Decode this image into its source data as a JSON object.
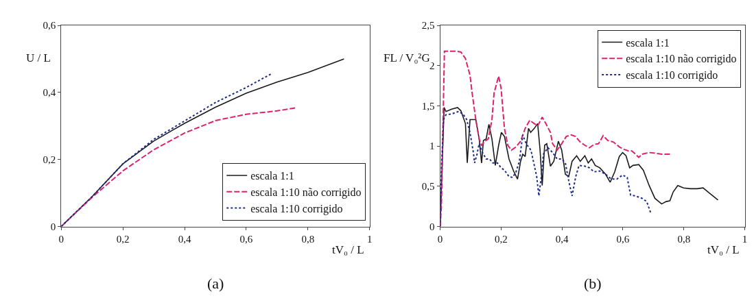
{
  "chart_data": [
    {
      "type": "line",
      "xlabel": "tV₀ / L",
      "ylabel": "U / L",
      "annotations": [
        "(a)"
      ],
      "legend": "bottom right",
      "marker": "none",
      "xlim": [
        0,
        1
      ],
      "xticks": [
        0,
        {
          "value": 0.2,
          "label": "0,2"
        },
        {
          "value": 0.4,
          "label": "0,4"
        },
        {
          "value": 0.6,
          "label": "0,6"
        },
        {
          "value": 0.8,
          "label": "0,8"
        },
        1
      ],
      "ylim": [
        0,
        0.6
      ],
      "yticks": [
        0,
        {
          "value": 0.2,
          "label": "0,2"
        },
        {
          "value": 0.4,
          "label": "0,4"
        },
        {
          "value": 0.6,
          "label": "0,6"
        }
      ],
      "series": [
        {
          "name": "escala 1:1",
          "color": "#1a1a1a",
          "line_style": "solid",
          "x": [
            0,
            0.1,
            0.2,
            0.3,
            0.4,
            0.5,
            0.6,
            0.7,
            0.8,
            0.917
          ],
          "values": [
            0,
            0.089,
            0.187,
            0.255,
            0.308,
            0.356,
            0.398,
            0.431,
            0.46,
            0.5
          ]
        },
        {
          "name": "escala 1:10 não corrigido",
          "color": "#e0206a",
          "line_style": "dashed",
          "x": [
            0,
            0.1,
            0.2,
            0.3,
            0.4,
            0.5,
            0.6,
            0.7,
            0.76
          ],
          "values": [
            0,
            0.087,
            0.166,
            0.229,
            0.279,
            0.316,
            0.335,
            0.345,
            0.354
          ]
        },
        {
          "name": "escala 1:10 corrigido",
          "color": "#1c2a8a",
          "line_style": "dotted",
          "x": [
            0,
            0.1,
            0.2,
            0.3,
            0.4,
            0.5,
            0.6,
            0.68
          ],
          "values": [
            0,
            0.089,
            0.187,
            0.26,
            0.315,
            0.37,
            0.415,
            0.455
          ]
        }
      ]
    },
    {
      "type": "line",
      "xlabel": "tV₀ / L",
      "ylabel": "FL / V₀²G",
      "annotations": [
        "(b)"
      ],
      "legend": "top right",
      "marker": "none",
      "xlim": [
        0,
        1
      ],
      "xticks": [
        0,
        {
          "value": 0.2,
          "label": "0,2"
        },
        {
          "value": 0.4,
          "label": "0,4"
        },
        {
          "value": 0.6,
          "label": "0,6"
        },
        {
          "value": 0.8,
          "label": "0,8"
        },
        1
      ],
      "ylim": [
        0,
        2.5
      ],
      "yticks": [
        0,
        {
          "value": 0.5,
          "label": "0,5"
        },
        1,
        {
          "value": 1.5,
          "label": "1,5"
        },
        2,
        {
          "value": 2.5,
          "label": "2,5"
        }
      ],
      "series": [
        {
          "name": "escala 1:1",
          "color": "#1a1a1a",
          "line_style": "solid",
          "x": [
            0,
            0.013,
            0.019,
            0.038,
            0.057,
            0.068,
            0.083,
            0.089,
            0.098,
            0.117,
            0.128,
            0.136,
            0.142,
            0.151,
            0.16,
            0.17,
            0.181,
            0.192,
            0.201,
            0.211,
            0.226,
            0.241,
            0.254,
            0.264,
            0.271,
            0.279,
            0.29,
            0.297,
            0.309,
            0.32,
            0.328,
            0.335,
            0.343,
            0.35,
            0.362,
            0.373,
            0.388,
            0.399,
            0.411,
            0.422,
            0.433,
            0.448,
            0.46,
            0.475,
            0.486,
            0.497,
            0.509,
            0.524,
            0.543,
            0.558,
            0.573,
            0.588,
            0.599,
            0.61,
            0.622,
            0.633,
            0.652,
            0.667,
            0.686,
            0.705,
            0.727,
            0.742,
            0.754,
            0.765,
            0.78,
            0.799,
            0.821,
            0.844,
            0.863,
            0.882,
            0.912
          ],
          "values": [
            0,
            1.48,
            1.43,
            1.46,
            1.48,
            1.44,
            1.28,
            0.79,
            1.33,
            1.33,
            1.09,
            0.79,
            1.07,
            1.09,
            1.27,
            1.09,
            0.76,
            1.01,
            1.17,
            1.12,
            0.84,
            0.69,
            0.59,
            0.81,
            0.9,
            0.87,
            1.22,
            1.17,
            1.22,
            1.28,
            0.95,
            0.51,
            1.01,
            1.03,
            0.75,
            0.81,
            1.06,
            0.95,
            0.65,
            0.62,
            0.81,
            0.88,
            0.81,
            0.88,
            0.79,
            0.84,
            0.76,
            0.73,
            0.65,
            0.55,
            0.68,
            0.87,
            0.92,
            0.88,
            0.73,
            0.76,
            0.77,
            0.7,
            0.51,
            0.35,
            0.28,
            0.31,
            0.32,
            0.43,
            0.51,
            0.48,
            0.47,
            0.47,
            0.48,
            0.42,
            0.33
          ]
        },
        {
          "name": "escala 1:10 não corrigido",
          "color": "#e0206a",
          "line_style": "dashed",
          "x": [
            0,
            0.004,
            0.014,
            0.023,
            0.053,
            0.068,
            0.083,
            0.098,
            0.105,
            0.117,
            0.128,
            0.136,
            0.147,
            0.158,
            0.17,
            0.177,
            0.192,
            0.2,
            0.211,
            0.222,
            0.234,
            0.249,
            0.264,
            0.279,
            0.294,
            0.309,
            0.32,
            0.335,
            0.347,
            0.362,
            0.369,
            0.384,
            0.399,
            0.414,
            0.43,
            0.444,
            0.46,
            0.475,
            0.49,
            0.505,
            0.52,
            0.535,
            0.55,
            0.569,
            0.588,
            0.603,
            0.618,
            0.629,
            0.641,
            0.652,
            0.663,
            0.686,
            0.708,
            0.727,
            0.761
          ],
          "values": [
            0,
            0.24,
            2.18,
            2.18,
            2.18,
            2.17,
            2.09,
            1.88,
            1.66,
            1.33,
            1.09,
            1.01,
            1.06,
            1.09,
            1.33,
            1.66,
            1.87,
            1.72,
            1.22,
            1.01,
            0.95,
            0.99,
            1.06,
            1.22,
            1.32,
            1.28,
            1.25,
            1.36,
            1.28,
            1.17,
            1.03,
            0.95,
            1.03,
            1.12,
            1.14,
            1.12,
            1.05,
            1.01,
            0.98,
            1.02,
            1.03,
            1.13,
            1.07,
            1.05,
            0.99,
            0.96,
            0.94,
            0.94,
            0.9,
            0.86,
            0.9,
            0.92,
            0.91,
            0.9,
            0.9
          ]
        },
        {
          "name": "escala 1:10 corrigido",
          "color": "#1c2a8a",
          "line_style": "dotted",
          "x": [
            0,
            0.005,
            0.011,
            0.019,
            0.038,
            0.06,
            0.075,
            0.087,
            0.098,
            0.109,
            0.113,
            0.121,
            0.128,
            0.139,
            0.151,
            0.162,
            0.173,
            0.188,
            0.2,
            0.211,
            0.226,
            0.238,
            0.249,
            0.26,
            0.271,
            0.279,
            0.286,
            0.298,
            0.309,
            0.317,
            0.324,
            0.332,
            0.339,
            0.354,
            0.369,
            0.384,
            0.399,
            0.411,
            0.422,
            0.433,
            0.445,
            0.456,
            0.475,
            0.49,
            0.505,
            0.524,
            0.543,
            0.562,
            0.58,
            0.599,
            0.614,
            0.625,
            0.641,
            0.663,
            0.678,
            0.692
          ],
          "values": [
            0,
            0.79,
            1.33,
            1.39,
            1.4,
            1.43,
            1.4,
            1.33,
            1.17,
            0.92,
            0.79,
            0.9,
            1.03,
            0.92,
            0.84,
            0.84,
            0.79,
            0.79,
            0.73,
            0.7,
            0.62,
            0.61,
            0.68,
            0.81,
            1.14,
            1.06,
            1.01,
            0.95,
            0.76,
            0.62,
            0.38,
            0.62,
            0.9,
            0.98,
            0.92,
            0.84,
            0.84,
            0.79,
            0.57,
            0.38,
            0.62,
            0.76,
            0.75,
            0.73,
            0.68,
            0.69,
            0.65,
            0.59,
            0.59,
            0.64,
            0.61,
            0.39,
            0.38,
            0.35,
            0.31,
            0.16
          ]
        }
      ]
    }
  ]
}
